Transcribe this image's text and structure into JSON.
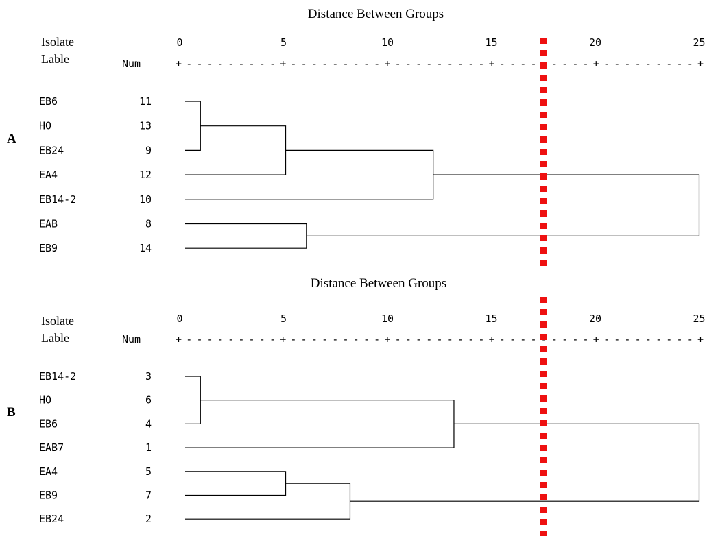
{
  "marker_color": "#ee1111",
  "marker_distance": 17.5,
  "panels": [
    {
      "panel_label": "A",
      "title": "Distance Between Groups",
      "header_isolate_1": "Isolate",
      "header_isolate_2": "Lable",
      "header_num": "Num",
      "scale_ticks": [
        "0",
        "5",
        "10",
        "15",
        "20",
        "25"
      ],
      "scale_line": "+---------+---------+---------+---------+---------+",
      "leaves": [
        {
          "label": "EB6",
          "num": "11"
        },
        {
          "label": "HO",
          "num": "13"
        },
        {
          "label": "EB24",
          "num": "9"
        },
        {
          "label": "EA4",
          "num": "12"
        },
        {
          "label": "EB14-2",
          "num": "10"
        },
        {
          "label": "EAB",
          "num": "8"
        },
        {
          "label": "EB9",
          "num": "14"
        }
      ],
      "merges": [
        {
          "a": 0,
          "b": 2,
          "height": 1.0
        },
        {
          "a": "m0",
          "b": 3,
          "height": 5.1
        },
        {
          "a": "m1",
          "b": 4,
          "height": 12.2
        },
        {
          "a": 5,
          "b": 6,
          "height": 6.1
        },
        {
          "a": "m2",
          "b": "m3",
          "height": 25.0
        }
      ]
    },
    {
      "panel_label": "B",
      "title": "Distance Between Groups",
      "header_isolate_1": "Isolate",
      "header_isolate_2": "Lable",
      "header_num": "Num",
      "scale_ticks": [
        "0",
        "5",
        "10",
        "15",
        "20",
        "25"
      ],
      "scale_line": "+---------+---------+---------+---------+---------+",
      "leaves": [
        {
          "label": "EB14-2",
          "num": "3"
        },
        {
          "label": "HO",
          "num": "6"
        },
        {
          "label": "EB6",
          "num": "4"
        },
        {
          "label": "EAB7",
          "num": "1"
        },
        {
          "label": "EA4",
          "num": "5"
        },
        {
          "label": "EB9",
          "num": "7"
        },
        {
          "label": "EB24",
          "num": "2"
        }
      ],
      "merges": [
        {
          "a": 0,
          "b": 2,
          "height": 1.0
        },
        {
          "a": "m0",
          "b": 3,
          "height": 13.2
        },
        {
          "a": 4,
          "b": 5,
          "height": 5.1
        },
        {
          "a": "m2",
          "b": 6,
          "height": 8.2
        },
        {
          "a": "m1",
          "b": "m3",
          "height": 25.0
        }
      ]
    }
  ]
}
